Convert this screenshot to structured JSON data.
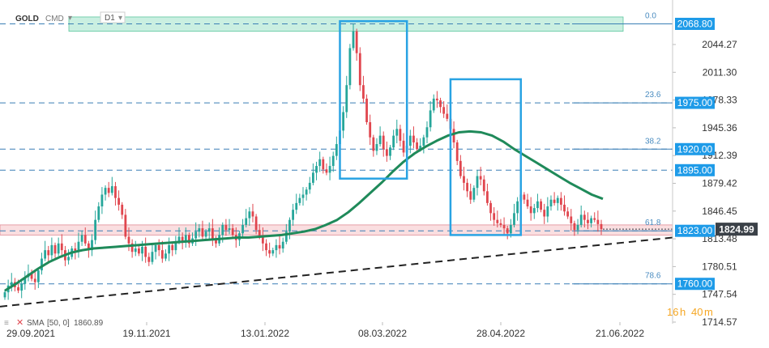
{
  "header": {
    "symbol": "GOLD",
    "suffix": "CMD",
    "timeframe": "D1"
  },
  "indicator": {
    "label": "SMA",
    "params": "[50, 0]",
    "value": "1860.89",
    "color": "#1f8a5a"
  },
  "countdown": {
    "hours": "16",
    "h_unit": "h",
    "minutes": "40",
    "m_unit": "m",
    "color": "#f5a623"
  },
  "colors": {
    "up": "#26a69a",
    "down": "#e0464e",
    "fib_line": "#3a7fb5",
    "label_bg": "#1e9be8",
    "price_bg": "#3b4148",
    "box": "#29a3e3",
    "trend": "#222222",
    "resistance_zone": "#9fe2c9",
    "support_zone": "#f5c2c7"
  },
  "chart_data": {
    "type": "candlestick",
    "x_ticks": [
      "29.09.2021",
      "19.11.2021",
      "13.01.2022",
      "08.03.2022",
      "28.04.2022",
      "21.06.2022"
    ],
    "y_ticks": [
      "2044.27",
      "2011.30",
      "1978.33",
      "1945.36",
      "1912.39",
      "1879.42",
      "1846.45",
      "1813.48",
      "1780.51",
      "1747.54",
      "1714.57"
    ],
    "ylim": [
      1714.57,
      2077.0
    ],
    "current_price": 1824.99,
    "levels": [
      {
        "fib": "0.0",
        "price": 2068.8,
        "label": "2068.80"
      },
      {
        "fib": "23.6",
        "price": 1975.0,
        "label": "1975.00"
      },
      {
        "fib": "38.2",
        "price": 1920.0,
        "label": "1920.00"
      },
      {
        "fib": "",
        "price": 1895.0,
        "label": "1895.00"
      },
      {
        "fib": "61.8",
        "price": 1823.0,
        "label": "1823.00"
      },
      {
        "fib": "78.6",
        "price": 1760.0,
        "label": "1760.00"
      }
    ],
    "zones": [
      {
        "name": "resistance",
        "low": 2060,
        "high": 2077
      },
      {
        "name": "support",
        "low": 1818,
        "high": 1830
      }
    ],
    "trendline": {
      "start": 1733,
      "end": 1815
    },
    "boxes": [
      {
        "from": 100,
        "to": 120,
        "low": 1885,
        "high": 2072
      },
      {
        "from": 133,
        "to": 154,
        "low": 1818,
        "high": 2003
      }
    ],
    "closes": [
      1750,
      1758,
      1762,
      1756,
      1752,
      1760,
      1768,
      1772,
      1766,
      1762,
      1776,
      1790,
      1800,
      1794,
      1806,
      1796,
      1808,
      1800,
      1788,
      1792,
      1802,
      1798,
      1810,
      1818,
      1808,
      1800,
      1812,
      1836,
      1852,
      1866,
      1874,
      1868,
      1876,
      1862,
      1854,
      1842,
      1816,
      1808,
      1798,
      1802,
      1796,
      1804,
      1792,
      1786,
      1798,
      1806,
      1800,
      1790,
      1796,
      1806,
      1800,
      1810,
      1816,
      1810,
      1818,
      1808,
      1814,
      1822,
      1826,
      1816,
      1822,
      1826,
      1812,
      1808,
      1818,
      1830,
      1824,
      1826,
      1818,
      1812,
      1820,
      1830,
      1838,
      1846,
      1840,
      1824,
      1816,
      1808,
      1800,
      1796,
      1800,
      1806,
      1802,
      1810,
      1822,
      1836,
      1848,
      1856,
      1862,
      1866,
      1872,
      1880,
      1892,
      1900,
      1908,
      1896,
      1892,
      1900,
      1912,
      1926,
      1942,
      1964,
      1996,
      2040,
      2060,
      2034,
      1996,
      1980,
      1952,
      1934,
      1918,
      1926,
      1936,
      1920,
      1912,
      1922,
      1936,
      1944,
      1930,
      1916,
      1924,
      1936,
      1928,
      1920,
      1924,
      1934,
      1946,
      1966,
      1980,
      1978,
      1970,
      1962,
      1956,
      1944,
      1928,
      1906,
      1888,
      1880,
      1870,
      1860,
      1874,
      1888,
      1884,
      1870,
      1856,
      1844,
      1836,
      1832,
      1830,
      1826,
      1820,
      1830,
      1844,
      1858,
      1866,
      1860,
      1852,
      1844,
      1850,
      1858,
      1848,
      1840,
      1852,
      1860,
      1856,
      1862,
      1854,
      1846,
      1840,
      1832,
      1824,
      1830,
      1842,
      1836,
      1832,
      1838,
      1836,
      1831,
      1825
    ],
    "sma_50": [
      1752,
      1760,
      1769,
      1778,
      1786,
      1792,
      1797,
      1800,
      1802,
      1803,
      1804,
      1805,
      1806,
      1807,
      1808,
      1809,
      1810,
      1811,
      1812,
      1813,
      1814,
      1815,
      1815,
      1816,
      1817,
      1818,
      1820,
      1822,
      1825,
      1830,
      1836,
      1845,
      1856,
      1868,
      1880,
      1893,
      1905,
      1915,
      1923,
      1930,
      1936,
      1940,
      1941,
      1940,
      1936,
      1929,
      1920,
      1912,
      1904,
      1896,
      1888,
      1880,
      1873,
      1866,
      1861
    ]
  }
}
